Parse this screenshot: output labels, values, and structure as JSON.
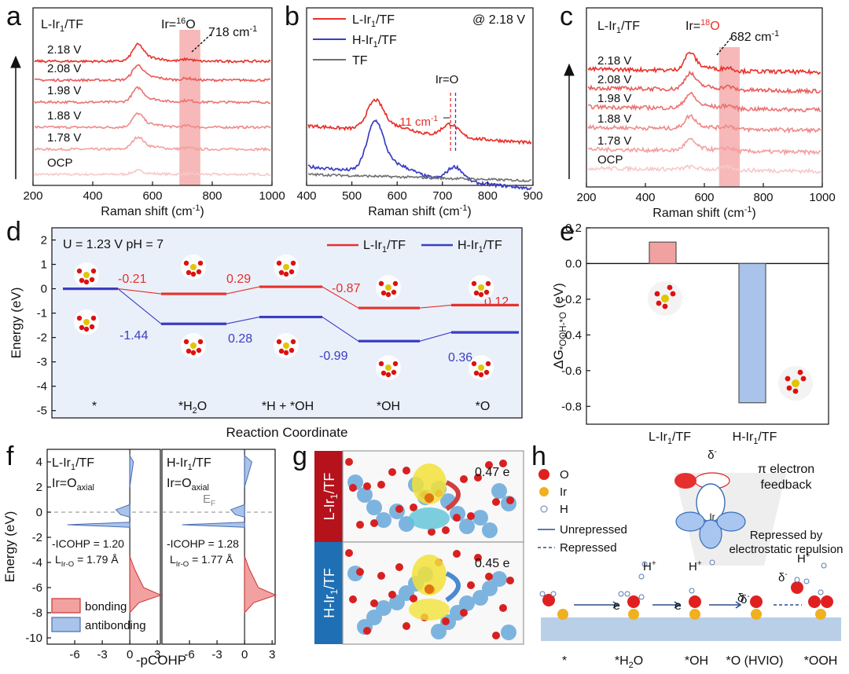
{
  "colors": {
    "red": "#e8302a",
    "blue": "#3a3dc2",
    "gray": "#6f6f6f",
    "pink_band": "#f29a9a",
    "light_red": "#f2a1a1",
    "light_blue": "#a9c3ea",
    "panel_d_bg": "#e9f0fa",
    "dark_red": "#b5121b",
    "dark_blue": "#1f6fb4"
  },
  "panel_letters": {
    "a": "a",
    "b": "b",
    "c": "c",
    "d": "d",
    "e": "e",
    "f": "f",
    "g": "g",
    "h": "h"
  },
  "chart_data": [
    {
      "panel": "a",
      "type": "line",
      "title": "L-Ir1/TF",
      "band_label": "Ir=16O",
      "annotation": "718 cm-1",
      "xlabel": "Raman shift (cm-1)",
      "xlim": [
        200,
        1000
      ],
      "xticks": [
        200,
        400,
        600,
        800,
        1000
      ],
      "band_range": [
        690,
        760
      ],
      "series": [
        {
          "name": "OCP",
          "peak_height": 0.15
        },
        {
          "name": "1.78 V",
          "peak_height": 0.55
        },
        {
          "name": "1.88 V",
          "peak_height": 0.65
        },
        {
          "name": "1.98 V",
          "peak_height": 0.7
        },
        {
          "name": "2.08 V",
          "peak_height": 0.75
        },
        {
          "name": "2.18 V",
          "peak_height": 0.9
        }
      ]
    },
    {
      "panel": "b",
      "type": "line",
      "condition": "@ 2.18 V",
      "band_label": "Ir=O",
      "annotation": "11 cm-1",
      "xlabel": "Raman shift (cm-1)",
      "xlim": [
        400,
        900
      ],
      "xticks": [
        400,
        500,
        600,
        700,
        800,
        900
      ],
      "series": [
        {
          "name": "L-Ir1/TF",
          "color": "#e8302a",
          "peak_pos": 718
        },
        {
          "name": "H-Ir1/TF",
          "color": "#3a3dc2",
          "peak_pos": 729
        },
        {
          "name": "TF",
          "color": "#6f6f6f"
        }
      ]
    },
    {
      "panel": "c",
      "type": "line",
      "title": "L-Ir1/TF",
      "band_label": "Ir=18O",
      "annotation": "682 cm-1",
      "xlabel": "Raman shift (cm-1)",
      "xlim": [
        200,
        1000
      ],
      "xticks": [
        200,
        400,
        600,
        800,
        1000
      ],
      "band_range": [
        650,
        720
      ],
      "series": [
        {
          "name": "OCP"
        },
        {
          "name": "1.78 V"
        },
        {
          "name": "1.88 V"
        },
        {
          "name": "1.98 V"
        },
        {
          "name": "2.08 V"
        },
        {
          "name": "2.18 V"
        }
      ]
    },
    {
      "panel": "d",
      "type": "line",
      "conditions": "U = 1.23 V  pH = 7",
      "xlabel": "Reaction Coordinate",
      "ylabel": "Energy (eV)",
      "ylim": [
        -5.3,
        2.5
      ],
      "yticks": [
        -5,
        -4,
        -3,
        -2,
        -1,
        0,
        1,
        2
      ],
      "steps": [
        "*",
        "*H2O",
        "*H + *OH",
        "*OH",
        "*O"
      ],
      "series": [
        {
          "name": "L-Ir1/TF",
          "color": "#e8302a",
          "levels": [
            0,
            -0.21,
            0.08,
            -0.79,
            -0.67
          ],
          "deltas": [
            "-0.21",
            "0.29",
            "-0.87",
            "0.12"
          ]
        },
        {
          "name": "H-Ir1/TF",
          "color": "#3a3dc2",
          "levels": [
            0,
            -1.44,
            -1.16,
            -2.15,
            -1.79
          ],
          "deltas": [
            "-1.44",
            "0.28",
            "-0.99",
            "0.36"
          ]
        }
      ]
    },
    {
      "panel": "e",
      "type": "bar",
      "ylabel": "ΔG*OOH-*O (eV)",
      "ylim": [
        -0.9,
        0.2
      ],
      "yticks": [
        0.2,
        0,
        -0.2,
        -0.4,
        -0.6,
        -0.8
      ],
      "categories": [
        "L-Ir1/TF",
        "H-Ir1/TF"
      ],
      "values": [
        0.12,
        -0.78
      ]
    },
    {
      "panel": "f",
      "type": "area",
      "ylabel": "Energy (eV)",
      "xlabel": "-pCOHP",
      "ylim": [
        -10.5,
        5
      ],
      "yticks": [
        4,
        2,
        0,
        -2,
        -4,
        -6,
        -8,
        -10
      ],
      "xticks": [
        "-6",
        "-3",
        "0",
        "3"
      ],
      "fermi_label": "EF",
      "legend": [
        "bonding",
        "antibonding"
      ],
      "subpanels": [
        {
          "name": "L-Ir1/TF",
          "bond": "Ir=Oaxial",
          "icohp": "-ICOHP = 1.20",
          "length": "LIr-O = 1.79 Å"
        },
        {
          "name": "H-Ir1/TF",
          "bond": "Ir=Oaxial",
          "icohp": "-ICOHP = 1.28",
          "length": "LIr-O = 1.77 Å"
        }
      ]
    }
  ],
  "panel_g": {
    "rows": [
      {
        "label": "L-Ir1/TF",
        "charge": "0.47 e"
      },
      {
        "label": "H-Ir1/TF",
        "charge": "0.45 e"
      }
    ]
  },
  "panel_h": {
    "legend": [
      "O",
      "Ir",
      "H",
      "Unrepressed",
      "Repressed"
    ],
    "feedback": "π electron feedback",
    "repressed": "Repressed by electrostatic repulsion",
    "steps": [
      "*",
      "*H2O",
      "*OH",
      "*O (HVIO)",
      "*OOH"
    ],
    "delta": "δ-",
    "hplus": "H+",
    "electron": "e"
  }
}
